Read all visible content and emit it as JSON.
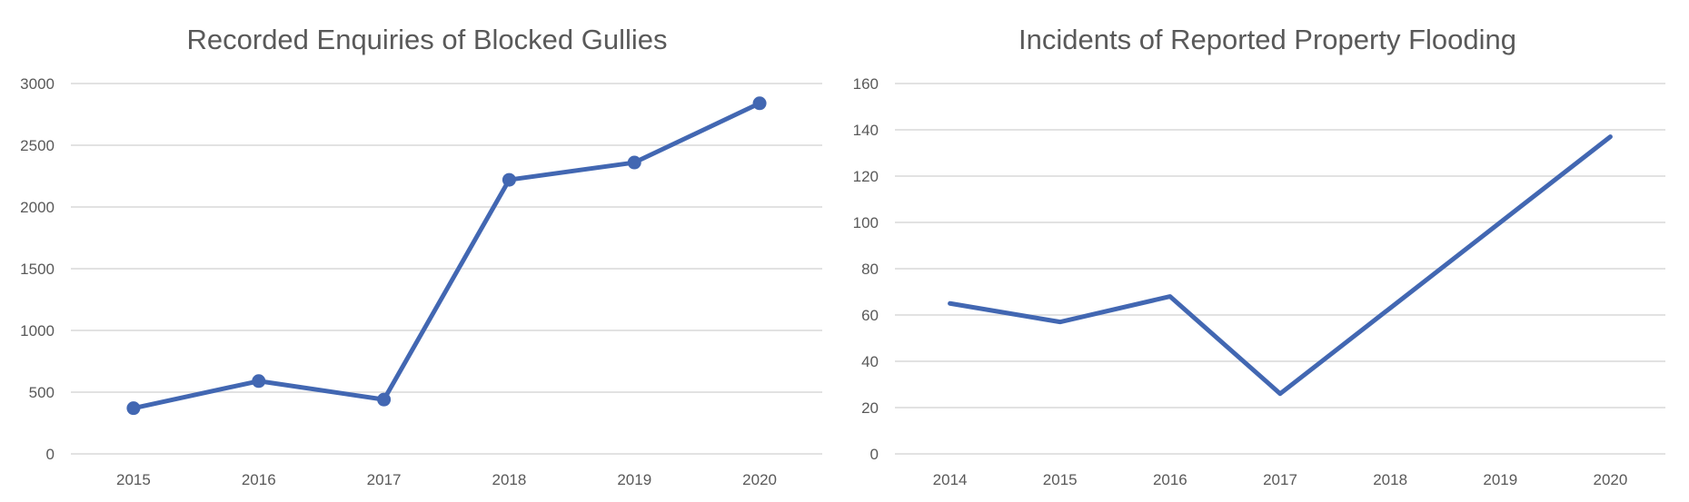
{
  "chart_data": [
    {
      "type": "line",
      "title": "Recorded Enquiries of Blocked Gullies",
      "xlabel": "",
      "ylabel": "",
      "categories": [
        "2015",
        "2016",
        "2017",
        "2018",
        "2019",
        "2020"
      ],
      "series": [
        {
          "values": [
            370,
            590,
            440,
            2220,
            2360,
            2840
          ],
          "markers": true
        }
      ],
      "ylim": [
        0,
        3000
      ],
      "yticks": [
        "0",
        "500",
        "1000",
        "1500",
        "2000",
        "2500",
        "3000"
      ],
      "grid": true,
      "legend": "none",
      "colors": {
        "line": "#4267B2"
      }
    },
    {
      "type": "line",
      "title": "Incidents of Reported Property Flooding",
      "xlabel": "",
      "ylabel": "",
      "categories": [
        "2014",
        "2015",
        "2016",
        "2017",
        "2018",
        "2019",
        "2020"
      ],
      "series": [
        {
          "values": [
            65,
            57,
            68,
            26,
            63,
            100,
            137
          ],
          "markers": false
        }
      ],
      "ylim": [
        0,
        160
      ],
      "yticks": [
        "0",
        "20",
        "40",
        "60",
        "80",
        "100",
        "120",
        "140",
        "160"
      ],
      "grid": true,
      "legend": "none",
      "colors": {
        "line": "#4267B2"
      }
    }
  ]
}
